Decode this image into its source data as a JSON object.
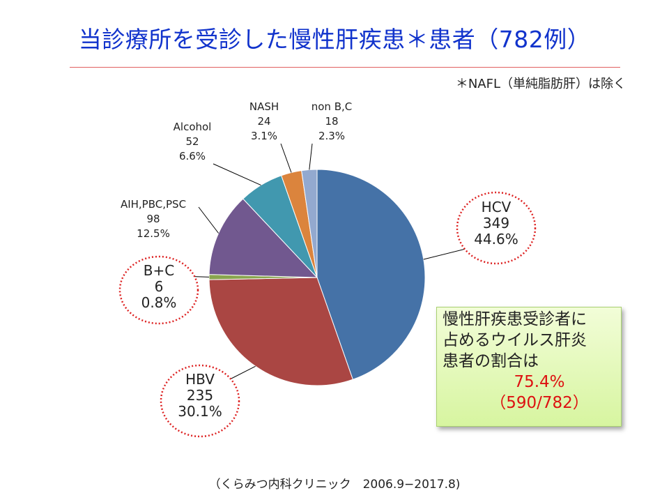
{
  "title": "当診療所を受診した慢性肝疾患＊患者（782例）",
  "note": "＊NAFL（単純脂肪肝）は除く",
  "source": "（くらみつ内科クリニック　2006.9−2017.8)",
  "summary": {
    "line1": "慢性肝疾患受診者に",
    "line2": "占めるウイルス肝炎",
    "line3": "患者の割合は",
    "percent": "75.4%",
    "fraction": "（590/782）"
  },
  "chart_data": {
    "type": "pie",
    "total": 782,
    "slices": [
      {
        "name": "HCV",
        "value": 349,
        "percent": "44.6%",
        "color": "#4572a7"
      },
      {
        "name": "HBV",
        "value": 235,
        "percent": "30.1%",
        "color": "#aa4643"
      },
      {
        "name": "B+C",
        "value": 6,
        "percent": "0.8%",
        "color": "#89a54e"
      },
      {
        "name": "AIH,PBC,PSC",
        "value": 98,
        "percent": "12.5%",
        "color": "#71588f"
      },
      {
        "name": "Alcohol",
        "value": 52,
        "percent": "6.6%",
        "color": "#4198af"
      },
      {
        "name": "NASH",
        "value": 24,
        "percent": "3.1%",
        "color": "#db843d"
      },
      {
        "name": "non B,C",
        "value": 18,
        "percent": "2.3%",
        "color": "#93a9cf"
      }
    ],
    "highlighted": [
      "HCV",
      "HBV",
      "B+C"
    ],
    "highlight_color": "#dd2222"
  }
}
